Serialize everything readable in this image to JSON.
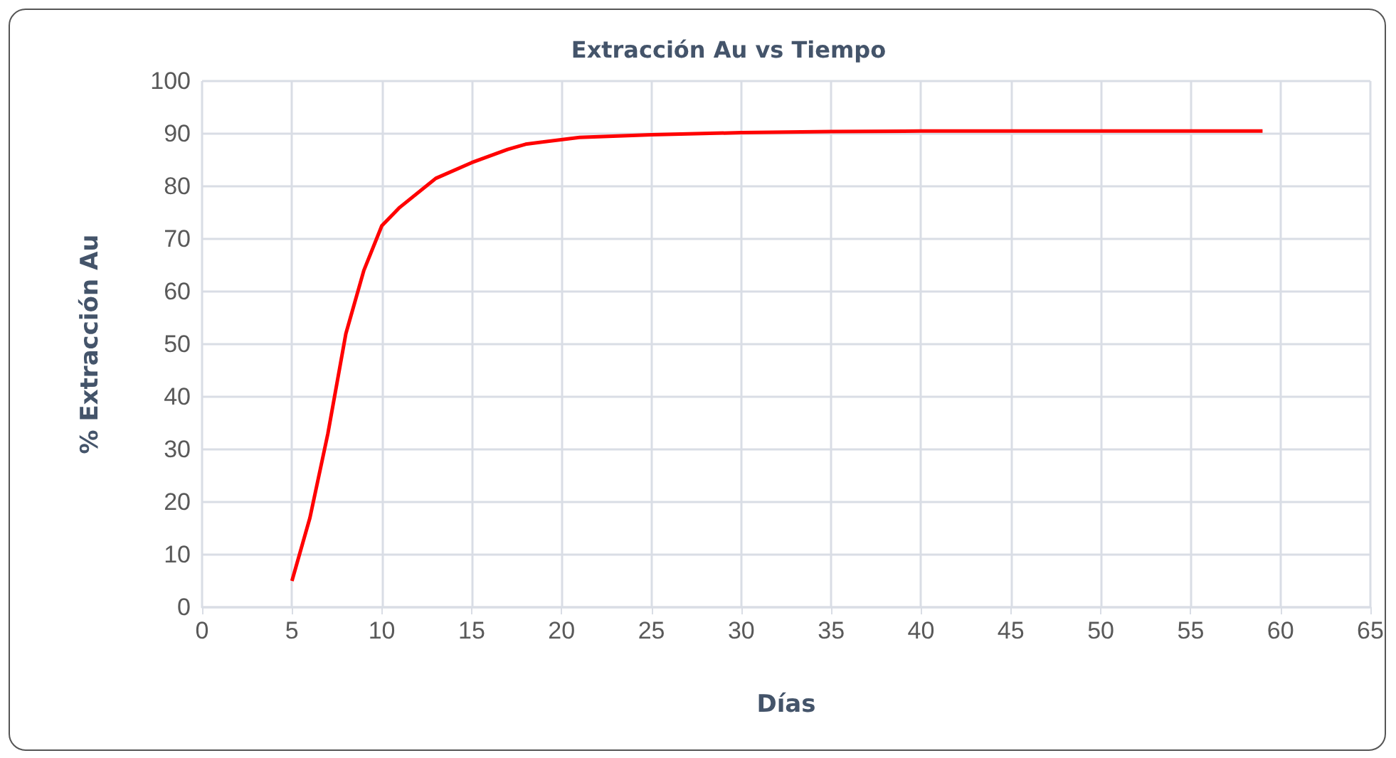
{
  "chart_data": {
    "type": "line",
    "title": "Extracción Au vs Tiempo",
    "xlabel": "Días",
    "ylabel": "% Extracción Au",
    "x": [
      5,
      6,
      7,
      8,
      9,
      10,
      11,
      13,
      15,
      17,
      18,
      21,
      25,
      30,
      35,
      40,
      59
    ],
    "series": [
      {
        "color": "#ff0000",
        "values": [
          5,
          17,
          33,
          52,
          64,
          72.5,
          76,
          81.5,
          84.5,
          87,
          88,
          89.3,
          89.8,
          90.2,
          90.4,
          90.5,
          90.5
        ]
      }
    ],
    "xlim": [
      0,
      65
    ],
    "xticks": [
      0,
      5,
      10,
      15,
      20,
      25,
      30,
      35,
      40,
      45,
      50,
      55,
      60,
      65
    ],
    "ylim": [
      0,
      100
    ],
    "yticks": [
      0,
      10,
      20,
      30,
      40,
      50,
      60,
      70,
      80,
      90,
      100
    ],
    "grid": true,
    "marker": "none",
    "line_style": "solid"
  }
}
